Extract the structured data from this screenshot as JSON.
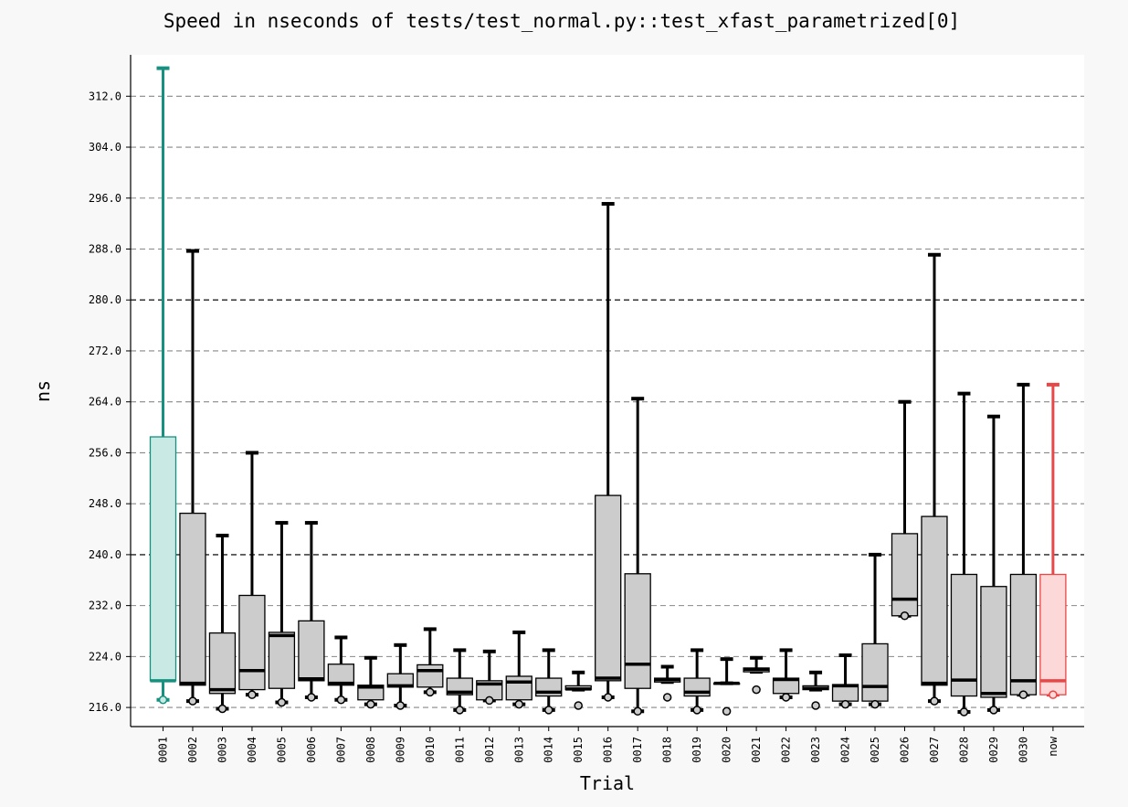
{
  "chart_data": {
    "type": "boxplot",
    "title": "Speed in nseconds of tests/test_normal.py::test_xfast_parametrized[0]",
    "xlabel": "Trial",
    "ylabel": "ns",
    "ylim": [
      213.0,
      318.5
    ],
    "yticks": [
      "216.0",
      "224.0",
      "232.0",
      "240.0",
      "248.0",
      "256.0",
      "264.0",
      "272.0",
      "280.0",
      "288.0",
      "296.0",
      "304.0",
      "312.0"
    ],
    "grid": "horizontal-dashed",
    "colors": {
      "first": "#16917f",
      "first_fill": "#c9e9e5",
      "default": "#000000",
      "default_fill": "#cccccc",
      "last": "#e84747",
      "last_fill": "#fdd8d8"
    },
    "categories": [
      "0001",
      "0002",
      "0003",
      "0004",
      "0005",
      "0006",
      "0007",
      "0008",
      "0009",
      "0010",
      "0011",
      "0012",
      "0013",
      "0014",
      "0015",
      "0016",
      "0017",
      "0018",
      "0019",
      "0020",
      "0021",
      "0022",
      "0023",
      "0024",
      "0025",
      "0026",
      "0027",
      "0028",
      "0029",
      "0030",
      "now"
    ],
    "boxes": [
      {
        "whislo": 217.2,
        "q1": 220.2,
        "med": 220.2,
        "q3": 258.5,
        "whishi": 316.4,
        "fliers": [
          217.2
        ]
      },
      {
        "whislo": 217.0,
        "q1": 219.5,
        "med": 219.8,
        "q3": 246.5,
        "whishi": 287.7,
        "fliers": [
          217.0
        ]
      },
      {
        "whislo": 215.8,
        "q1": 218.2,
        "med": 218.8,
        "q3": 227.7,
        "whishi": 243.0,
        "fliers": [
          215.8
        ]
      },
      {
        "whislo": 218.0,
        "q1": 218.8,
        "med": 221.8,
        "q3": 233.6,
        "whishi": 256.0,
        "fliers": [
          218.0
        ]
      },
      {
        "whislo": 216.8,
        "q1": 219.0,
        "med": 227.3,
        "q3": 227.8,
        "whishi": 245.0,
        "fliers": [
          216.8
        ]
      },
      {
        "whislo": 217.6,
        "q1": 220.2,
        "med": 220.5,
        "q3": 229.6,
        "whishi": 245.0,
        "fliers": [
          217.6
        ]
      },
      {
        "whislo": 217.2,
        "q1": 219.5,
        "med": 219.8,
        "q3": 222.8,
        "whishi": 227.0,
        "fliers": [
          217.2
        ]
      },
      {
        "whislo": 216.5,
        "q1": 217.2,
        "med": 219.2,
        "q3": 219.5,
        "whishi": 223.8,
        "fliers": [
          216.5
        ]
      },
      {
        "whislo": 216.3,
        "q1": 219.2,
        "med": 219.4,
        "q3": 221.3,
        "whishi": 225.8,
        "fliers": [
          216.3
        ]
      },
      {
        "whislo": 218.4,
        "q1": 219.2,
        "med": 221.8,
        "q3": 222.7,
        "whishi": 228.3,
        "fliers": [
          218.4
        ]
      },
      {
        "whislo": 215.6,
        "q1": 218.0,
        "med": 218.4,
        "q3": 220.6,
        "whishi": 225.0,
        "fliers": [
          215.6
        ]
      },
      {
        "whislo": 217.1,
        "q1": 217.2,
        "med": 219.7,
        "q3": 220.2,
        "whishi": 224.8,
        "fliers": [
          217.1
        ]
      },
      {
        "whislo": 216.5,
        "q1": 217.2,
        "med": 220.0,
        "q3": 220.9,
        "whishi": 227.8,
        "fliers": [
          216.5
        ]
      },
      {
        "whislo": 215.6,
        "q1": 217.8,
        "med": 218.4,
        "q3": 220.6,
        "whishi": 225.0,
        "fliers": [
          215.6
        ]
      },
      {
        "whislo": 218.8,
        "q1": 218.8,
        "med": 218.9,
        "q3": 219.4,
        "whishi": 221.5,
        "fliers": [
          216.3
        ]
      },
      {
        "whislo": 217.6,
        "q1": 220.2,
        "med": 220.6,
        "q3": 249.3,
        "whishi": 295.1,
        "fliers": [
          217.6
        ]
      },
      {
        "whislo": 215.4,
        "q1": 219.0,
        "med": 222.8,
        "q3": 237.0,
        "whishi": 264.5,
        "fliers": [
          215.4
        ]
      },
      {
        "whislo": 220.0,
        "q1": 220.0,
        "med": 220.4,
        "q3": 220.6,
        "whishi": 222.4,
        "fliers": [
          217.6
        ]
      },
      {
        "whislo": 215.6,
        "q1": 217.8,
        "med": 218.4,
        "q3": 220.6,
        "whishi": 225.0,
        "fliers": [
          215.6
        ]
      },
      {
        "whislo": 219.8,
        "q1": 219.8,
        "med": 219.8,
        "q3": 219.8,
        "whishi": 223.6,
        "fliers": [
          215.4
        ]
      },
      {
        "whislo": 221.6,
        "q1": 221.6,
        "med": 222.0,
        "q3": 222.2,
        "whishi": 223.8,
        "fliers": [
          218.8
        ]
      },
      {
        "whislo": 217.6,
        "q1": 218.2,
        "med": 220.4,
        "q3": 220.6,
        "whishi": 225.0,
        "fliers": [
          217.6
        ]
      },
      {
        "whislo": 218.8,
        "q1": 218.8,
        "med": 219.0,
        "q3": 219.4,
        "whishi": 221.5,
        "fliers": [
          216.3
        ]
      },
      {
        "whislo": 216.5,
        "q1": 217.0,
        "med": 219.4,
        "q3": 219.6,
        "whishi": 224.2,
        "fliers": [
          216.5
        ]
      },
      {
        "whislo": 216.5,
        "q1": 217.0,
        "med": 219.3,
        "q3": 226.0,
        "whishi": 240.0,
        "fliers": [
          216.5
        ]
      },
      {
        "whislo": 230.4,
        "q1": 230.4,
        "med": 233.0,
        "q3": 243.3,
        "whishi": 264.0,
        "fliers": [
          230.4
        ]
      },
      {
        "whislo": 217.0,
        "q1": 219.5,
        "med": 219.8,
        "q3": 246.0,
        "whishi": 287.1,
        "fliers": [
          217.0
        ]
      },
      {
        "whislo": 215.3,
        "q1": 217.8,
        "med": 220.3,
        "q3": 236.9,
        "whishi": 265.3,
        "fliers": [
          215.3
        ]
      },
      {
        "whislo": 215.6,
        "q1": 217.6,
        "med": 218.2,
        "q3": 235.0,
        "whishi": 261.7,
        "fliers": [
          215.6
        ]
      },
      {
        "whislo": 218.0,
        "q1": 218.0,
        "med": 220.2,
        "q3": 236.9,
        "whishi": 266.7,
        "fliers": [
          218.0
        ]
      },
      {
        "whislo": 218.0,
        "q1": 218.0,
        "med": 220.2,
        "q3": 236.9,
        "whishi": 266.7,
        "fliers": [
          218.0
        ]
      }
    ]
  }
}
